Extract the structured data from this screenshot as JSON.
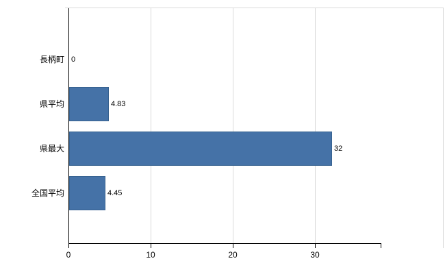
{
  "chart_data": {
    "type": "bar",
    "orientation": "horizontal",
    "title": "",
    "categories": [
      "長柄町",
      "県平均",
      "県最大",
      "全国平均"
    ],
    "values": [
      0,
      4.83,
      32,
      4.45
    ],
    "value_labels": [
      "0",
      "4.83",
      "32",
      "4.45"
    ],
    "x_ticks": [
      0,
      10,
      20,
      30
    ],
    "x_tick_labels": [
      "0",
      "10",
      "20",
      "30"
    ],
    "xlim": [
      0,
      38
    ],
    "grid": true,
    "legend": "none",
    "bar_color": "#4572A7",
    "bar_border_color": "#36618f"
  },
  "colors": {
    "background": "#ffffff",
    "bar": "#4572A7",
    "bar_border": "#36618f",
    "grid": "#d9d9d9",
    "frame": "#d9d9d9",
    "axis": "#000000",
    "text": "#000000"
  }
}
